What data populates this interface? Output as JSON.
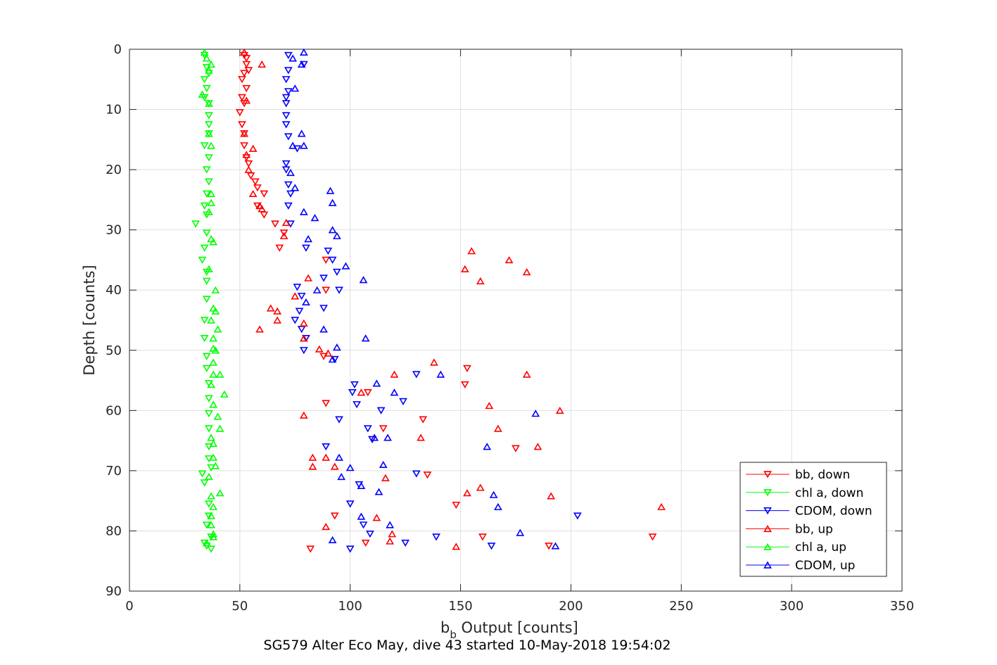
{
  "chart_data": {
    "type": "scatter",
    "xlabel_main": "b",
    "xlabel_sub": "b",
    "xlabel_rest": " Output [counts]",
    "ylabel": "Depth [counts]",
    "caption": "SG579 Alter Eco May, dive 43 started 10-May-2018 19:54:02",
    "xlim": [
      0,
      350
    ],
    "ylim": [
      0,
      90
    ],
    "y_reversed": true,
    "grid": true,
    "legend_position": "bottom-right",
    "xticks": [
      0,
      50,
      100,
      150,
      200,
      250,
      300,
      350
    ],
    "yticks": [
      0,
      10,
      20,
      30,
      40,
      50,
      60,
      70,
      80,
      90
    ],
    "series": [
      {
        "name": "bb, down",
        "color": "#ff0000",
        "marker": "triangle-down",
        "points": [
          [
            52,
            1
          ],
          [
            53,
            1.5
          ],
          [
            53,
            2.5
          ],
          [
            54,
            3.5
          ],
          [
            52,
            4
          ],
          [
            51,
            5
          ],
          [
            53,
            6.5
          ],
          [
            51,
            8
          ],
          [
            52,
            9
          ],
          [
            50,
            10.5
          ],
          [
            51,
            12.5
          ],
          [
            52,
            14
          ],
          [
            52,
            16
          ],
          [
            53,
            18
          ],
          [
            54,
            19
          ],
          [
            55,
            21
          ],
          [
            57,
            22
          ],
          [
            58,
            23
          ],
          [
            61,
            24
          ],
          [
            58,
            26
          ],
          [
            61,
            27.5
          ],
          [
            66,
            29
          ],
          [
            70,
            30.5
          ],
          [
            68,
            33
          ],
          [
            89,
            35
          ],
          [
            89,
            40
          ],
          [
            88,
            51
          ],
          [
            108,
            57
          ],
          [
            89,
            58.8
          ],
          [
            133,
            61.5
          ],
          [
            153,
            53
          ],
          [
            152,
            55.7
          ],
          [
            115,
            63
          ],
          [
            110,
            64.8
          ],
          [
            175,
            66.3
          ],
          [
            135,
            70.7
          ],
          [
            148,
            75.7
          ],
          [
            93,
            77.5
          ],
          [
            160,
            81
          ],
          [
            107,
            82
          ],
          [
            190,
            82.5
          ],
          [
            82,
            83
          ],
          [
            237,
            81
          ]
        ]
      },
      {
        "name": "chl a, down",
        "color": "#00ff00",
        "marker": "triangle-down",
        "points": [
          [
            34,
            1
          ],
          [
            35,
            3
          ],
          [
            36,
            4
          ],
          [
            34,
            5
          ],
          [
            35,
            6.5
          ],
          [
            34,
            8
          ],
          [
            36,
            9
          ],
          [
            36,
            11
          ],
          [
            36,
            12.5
          ],
          [
            36,
            14
          ],
          [
            34,
            16
          ],
          [
            36,
            18
          ],
          [
            35,
            20
          ],
          [
            36,
            22
          ],
          [
            35,
            24
          ],
          [
            34,
            26
          ],
          [
            35,
            27.5
          ],
          [
            30,
            29
          ],
          [
            35,
            30.5
          ],
          [
            34,
            33
          ],
          [
            33,
            35
          ],
          [
            35,
            37
          ],
          [
            35,
            38.5
          ],
          [
            35,
            41.5
          ],
          [
            34,
            45
          ],
          [
            34,
            48
          ],
          [
            35,
            51
          ],
          [
            35,
            53
          ],
          [
            36,
            55.5
          ],
          [
            36,
            58
          ],
          [
            36,
            60.5
          ],
          [
            36,
            63
          ],
          [
            36,
            66
          ],
          [
            36,
            68
          ],
          [
            37,
            69.5
          ],
          [
            33,
            70.5
          ],
          [
            34,
            72
          ],
          [
            36,
            75.5
          ],
          [
            36,
            77.5
          ],
          [
            35,
            79
          ],
          [
            37,
            81
          ],
          [
            34,
            82
          ],
          [
            35,
            82.5
          ],
          [
            37,
            83
          ]
        ]
      },
      {
        "name": "CDOM, down",
        "color": "#0000ff",
        "marker": "triangle-down",
        "points": [
          [
            72,
            1
          ],
          [
            79,
            2.5
          ],
          [
            72,
            3.5
          ],
          [
            71,
            5
          ],
          [
            72,
            7
          ],
          [
            71,
            8
          ],
          [
            71,
            9
          ],
          [
            71,
            11
          ],
          [
            71,
            12.5
          ],
          [
            72,
            14.5
          ],
          [
            76,
            16.5
          ],
          [
            71,
            19
          ],
          [
            71,
            20
          ],
          [
            72,
            22.5
          ],
          [
            73,
            24
          ],
          [
            72,
            26
          ],
          [
            73,
            29
          ],
          [
            80,
            33
          ],
          [
            90,
            33.5
          ],
          [
            92,
            35
          ],
          [
            94,
            37
          ],
          [
            88,
            38
          ],
          [
            76,
            39.5
          ],
          [
            95,
            40
          ],
          [
            78,
            41
          ],
          [
            77,
            43.5
          ],
          [
            88,
            43
          ],
          [
            75,
            45
          ],
          [
            78,
            46.5
          ],
          [
            79,
            50
          ],
          [
            80,
            48
          ],
          [
            93,
            51.5
          ],
          [
            102,
            55.7
          ],
          [
            101,
            57
          ],
          [
            103,
            59
          ],
          [
            95,
            61.5
          ],
          [
            108,
            63
          ],
          [
            110,
            64.8
          ],
          [
            89,
            66
          ],
          [
            114,
            60
          ],
          [
            130,
            54
          ],
          [
            124,
            58.5
          ],
          [
            130,
            70.5
          ],
          [
            104,
            72.3
          ],
          [
            100,
            75.5
          ],
          [
            106,
            79
          ],
          [
            109,
            80.5
          ],
          [
            139,
            81
          ],
          [
            125,
            82
          ],
          [
            100,
            83
          ],
          [
            164,
            82.5
          ],
          [
            203,
            77.5
          ]
        ]
      },
      {
        "name": "bb, up",
        "color": "#ff0000",
        "marker": "triangle-up",
        "points": [
          [
            52,
            0.5
          ],
          [
            60,
            2.5
          ],
          [
            53,
            8.5
          ],
          [
            52,
            14
          ],
          [
            53,
            17.5
          ],
          [
            56,
            16.5
          ],
          [
            54,
            20
          ],
          [
            56,
            24
          ],
          [
            59,
            26
          ],
          [
            60,
            26.5
          ],
          [
            71,
            28.8
          ],
          [
            70,
            31
          ],
          [
            155,
            33.5
          ],
          [
            152,
            36.5
          ],
          [
            172,
            35
          ],
          [
            180,
            37
          ],
          [
            159,
            38.5
          ],
          [
            81,
            38
          ],
          [
            75,
            41
          ],
          [
            64,
            43
          ],
          [
            67,
            43.5
          ],
          [
            67,
            45
          ],
          [
            59,
            46.5
          ],
          [
            79,
            45.5
          ],
          [
            79,
            48
          ],
          [
            86,
            49.8
          ],
          [
            90,
            50.5
          ],
          [
            138,
            52
          ],
          [
            120,
            54
          ],
          [
            180,
            54
          ],
          [
            105,
            57
          ],
          [
            163,
            59.2
          ],
          [
            195,
            60
          ],
          [
            79,
            60.8
          ],
          [
            167,
            63
          ],
          [
            132,
            64.5
          ],
          [
            185,
            66
          ],
          [
            83,
            67.8
          ],
          [
            89,
            67.8
          ],
          [
            83,
            69.3
          ],
          [
            93,
            69.3
          ],
          [
            116,
            71.2
          ],
          [
            159,
            72.8
          ],
          [
            153,
            73.7
          ],
          [
            191,
            74.2
          ],
          [
            112,
            77.8
          ],
          [
            241,
            76
          ],
          [
            89,
            79.3
          ],
          [
            119,
            80.5
          ],
          [
            118,
            81.7
          ],
          [
            148,
            82.6
          ]
        ]
      },
      {
        "name": "chl a, up",
        "color": "#00ff00",
        "marker": "triangle-up",
        "points": [
          [
            34,
            0.5
          ],
          [
            35,
            1.5
          ],
          [
            37,
            2.5
          ],
          [
            36,
            3.5
          ],
          [
            33,
            7.5
          ],
          [
            36,
            9
          ],
          [
            36,
            14
          ],
          [
            37,
            16
          ],
          [
            37,
            24
          ],
          [
            37,
            25.5
          ],
          [
            36,
            27
          ],
          [
            37,
            31.5
          ],
          [
            38,
            32
          ],
          [
            36,
            36.5
          ],
          [
            39,
            40
          ],
          [
            38,
            43
          ],
          [
            39,
            43.5
          ],
          [
            37,
            45
          ],
          [
            40,
            46.5
          ],
          [
            38,
            48
          ],
          [
            38,
            49.7
          ],
          [
            39,
            50
          ],
          [
            38,
            52
          ],
          [
            38,
            54
          ],
          [
            41,
            54
          ],
          [
            37,
            55.7
          ],
          [
            43,
            57.3
          ],
          [
            38,
            59
          ],
          [
            40,
            61
          ],
          [
            41,
            63
          ],
          [
            37,
            64.5
          ],
          [
            38,
            65.5
          ],
          [
            38,
            67.8
          ],
          [
            39,
            69.2
          ],
          [
            36,
            71
          ],
          [
            41,
            73.7
          ],
          [
            37,
            74.2
          ],
          [
            38,
            76
          ],
          [
            37,
            77.5
          ],
          [
            37,
            79
          ],
          [
            38,
            80.5
          ],
          [
            38,
            81
          ],
          [
            35,
            82
          ]
        ]
      },
      {
        "name": "CDOM, up",
        "color": "#0000ff",
        "marker": "triangle-up",
        "points": [
          [
            79,
            0.5
          ],
          [
            74,
            1.5
          ],
          [
            78,
            2.5
          ],
          [
            75,
            6.5
          ],
          [
            78,
            14
          ],
          [
            74,
            16
          ],
          [
            79,
            16
          ],
          [
            73,
            20.5
          ],
          [
            75,
            23
          ],
          [
            91,
            23.5
          ],
          [
            92,
            25.5
          ],
          [
            79,
            27
          ],
          [
            84,
            28
          ],
          [
            92,
            30
          ],
          [
            94,
            31
          ],
          [
            81,
            31.5
          ],
          [
            98,
            36
          ],
          [
            106,
            38.3
          ],
          [
            85,
            40
          ],
          [
            80,
            42
          ],
          [
            100,
            69.5
          ],
          [
            88,
            46.5
          ],
          [
            107,
            48
          ],
          [
            94,
            49.5
          ],
          [
            92,
            51.5
          ],
          [
            112,
            55.5
          ],
          [
            120,
            57
          ],
          [
            184,
            60.5
          ],
          [
            111,
            64.5
          ],
          [
            117,
            64.5
          ],
          [
            162,
            66
          ],
          [
            95,
            67.8
          ],
          [
            115,
            69
          ],
          [
            96,
            71
          ],
          [
            105,
            72.5
          ],
          [
            113,
            73.5
          ],
          [
            165,
            74
          ],
          [
            167,
            76
          ],
          [
            141,
            54
          ],
          [
            105,
            77.6
          ],
          [
            118,
            79
          ],
          [
            177,
            80.3
          ],
          [
            92,
            81.5
          ],
          [
            193,
            82.5
          ]
        ]
      }
    ]
  }
}
